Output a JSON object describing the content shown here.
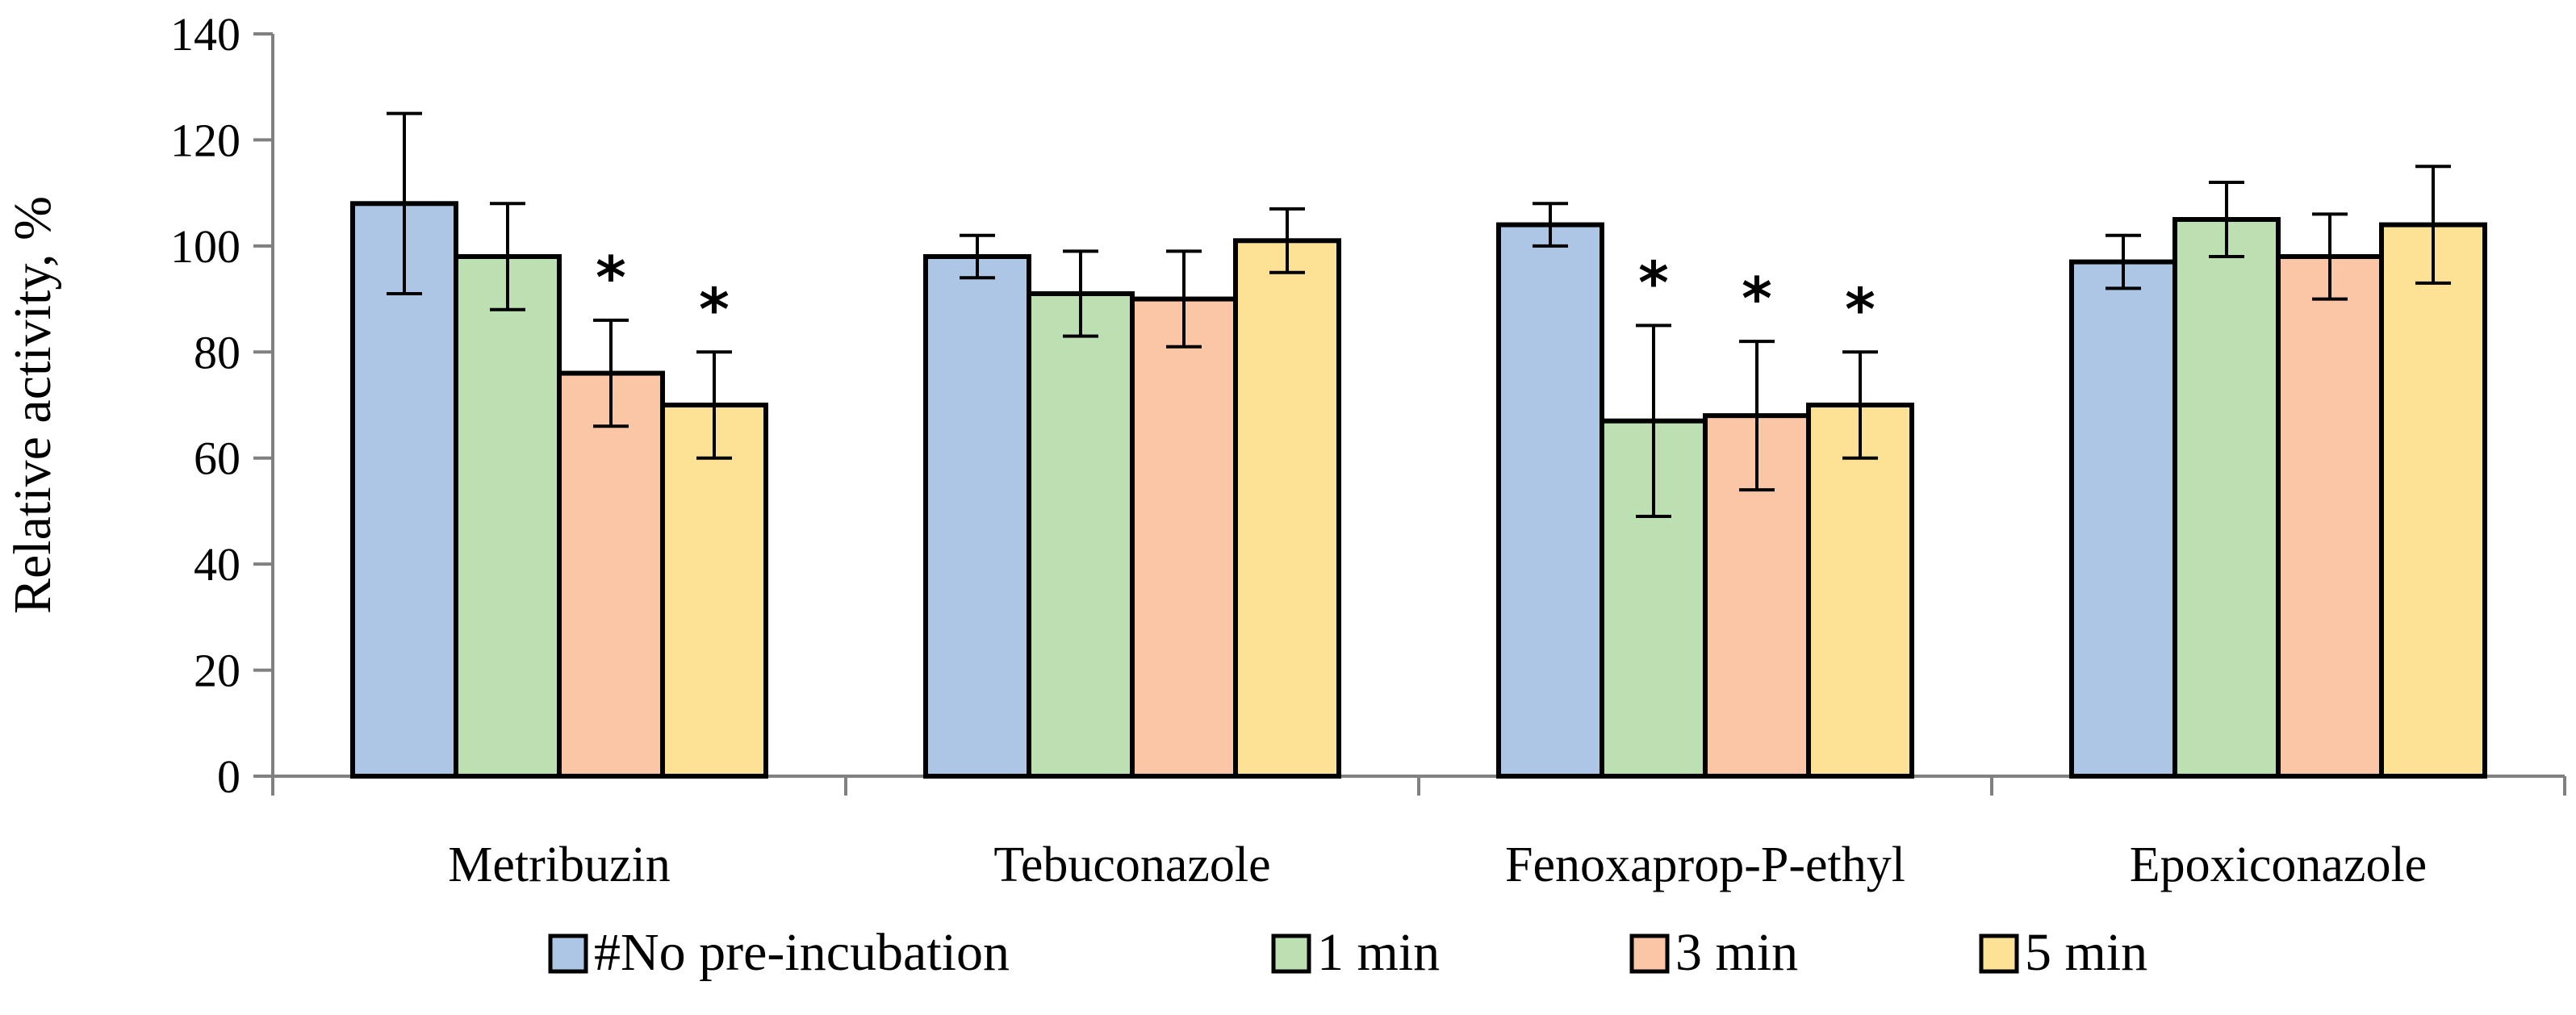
{
  "chart_data": {
    "type": "bar",
    "title": "",
    "xlabel": "",
    "ylabel": "Relative activity, %",
    "ylim": [
      0,
      140
    ],
    "yticks": [
      0,
      20,
      40,
      60,
      80,
      100,
      120,
      140
    ],
    "categories": [
      "Metribuzin",
      "Tebuconazole",
      "Fenoxaprop-P-ethyl",
      "Epoxiconazole"
    ],
    "series": [
      {
        "name": "#No pre-incubation",
        "color": "#adc6e6",
        "values": [
          108,
          98,
          104,
          97
        ],
        "errors": [
          17,
          4,
          4,
          5
        ],
        "significant": [
          false,
          false,
          false,
          false
        ]
      },
      {
        "name": "1 min",
        "color": "#bde0b2",
        "values": [
          98,
          91,
          67,
          105
        ],
        "errors": [
          10,
          8,
          18,
          7
        ],
        "significant": [
          false,
          false,
          true,
          false
        ]
      },
      {
        "name": "3 min",
        "color": "#fac6a6",
        "values": [
          76,
          90,
          68,
          98
        ],
        "errors": [
          10,
          9,
          14,
          8
        ],
        "significant": [
          true,
          false,
          true,
          false
        ]
      },
      {
        "name": "5 min",
        "color": "#fde296",
        "values": [
          70,
          101,
          70,
          104
        ],
        "errors": [
          10,
          6,
          10,
          11
        ],
        "significant": [
          true,
          false,
          true,
          false
        ]
      }
    ],
    "significance_marker": "*",
    "legend_position": "bottom",
    "grid": false
  }
}
